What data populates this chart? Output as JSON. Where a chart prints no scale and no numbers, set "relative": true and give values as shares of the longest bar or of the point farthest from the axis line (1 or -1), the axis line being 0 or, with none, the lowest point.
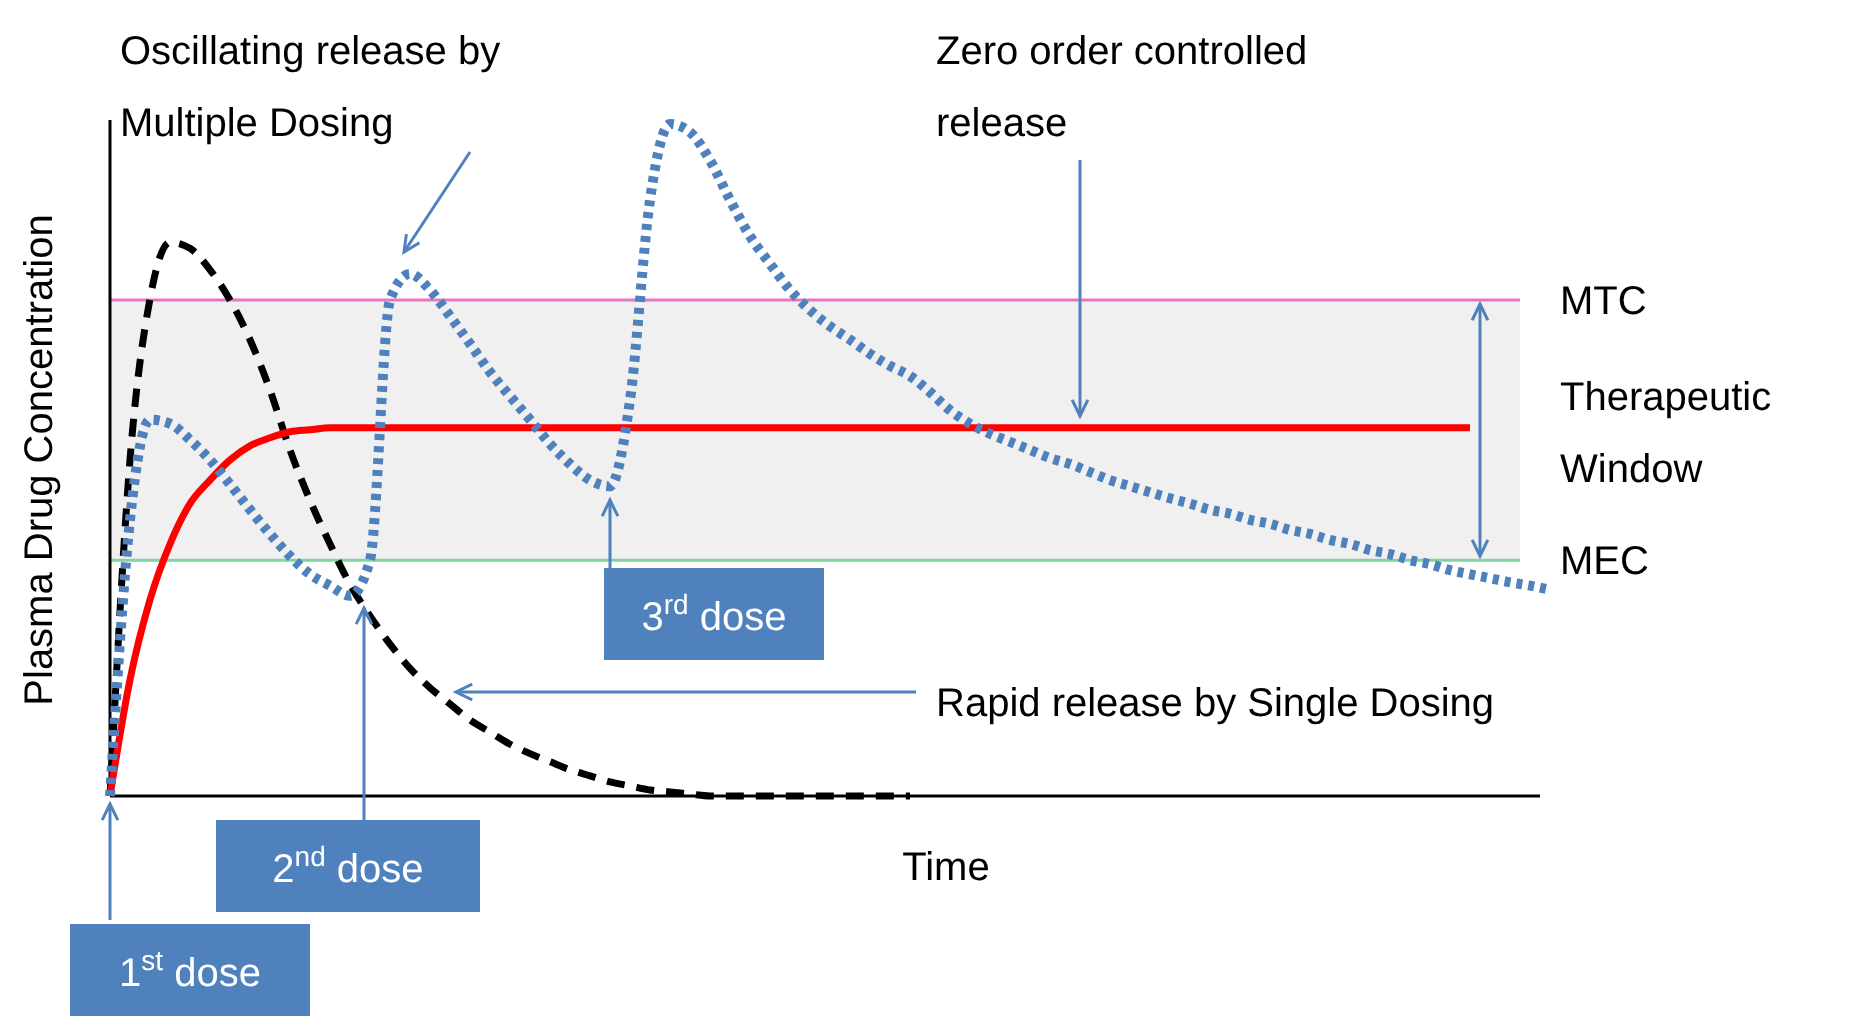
{
  "chart_data": {
    "type": "line",
    "relative": true,
    "ylabel": "Plasma Drug Concentration",
    "xlabel": "Time",
    "categories": [
      null,
      null,
      null,
      null,
      null,
      null,
      null,
      null,
      null,
      null,
      null,
      null,
      null,
      null,
      null,
      null,
      null,
      null,
      null,
      null,
      null,
      null,
      null,
      null,
      null,
      null,
      null,
      null,
      null,
      null,
      null,
      null,
      null,
      null,
      null,
      null,
      null,
      null,
      null,
      null,
      null,
      null,
      null,
      null,
      null,
      null,
      null,
      null,
      null,
      null,
      null,
      null,
      null,
      null,
      null,
      null,
      null,
      null,
      null,
      null,
      null,
      null,
      null,
      null,
      null,
      null,
      null,
      null,
      null,
      null,
      null,
      null,
      null
    ],
    "series": [
      {
        "color": "#000000",
        "line_style": "dashed",
        "values": [
          0,
          0.5,
          0.74,
          0.824,
          0.815,
          0.783,
          0.738,
          0.679,
          0.604,
          0.515,
          0.44,
          0.375,
          0.315,
          0.268,
          0.226,
          0.19,
          0.161,
          0.137,
          0.113,
          0.095,
          0.077,
          0.063,
          0.051,
          0.039,
          0.03,
          0.021,
          0.015,
          0.009,
          0.006,
          0.003,
          0,
          0,
          0,
          0,
          0,
          0,
          0,
          0,
          0,
          0,
          0,
          null,
          null,
          null,
          null,
          null,
          null,
          null,
          null,
          null,
          null,
          null,
          null,
          null,
          null,
          null,
          null,
          null,
          null,
          null,
          null,
          null,
          null,
          null,
          null,
          null,
          null,
          null,
          null,
          null,
          null,
          null,
          null
        ]
      },
      {
        "color": "#ff0000",
        "line_style": "solid",
        "values": [
          0,
          0.173,
          0.292,
          0.375,
          0.435,
          0.47,
          0.5,
          0.521,
          0.533,
          0.542,
          0.545,
          0.548,
          0.548,
          0.548,
          0.548,
          0.548,
          0.548,
          0.548,
          0.548,
          0.548,
          0.548,
          0.548,
          0.548,
          0.548,
          0.548,
          0.548,
          0.548,
          0.548,
          0.548,
          0.548,
          0.548,
          0.548,
          0.548,
          0.548,
          0.548,
          0.548,
          0.548,
          0.548,
          0.548,
          0.548,
          0.548,
          0.548,
          0.548,
          0.548,
          0.548,
          0.548,
          0.548,
          0.548,
          0.548,
          0.548,
          0.548,
          0.548,
          0.548,
          0.548,
          0.548,
          0.548,
          0.548,
          0.548,
          0.548,
          0.548,
          0.548,
          0.548,
          0.548,
          0.548,
          0.548,
          0.548,
          0.548,
          0.548,
          0.548,
          null,
          null,
          null,
          null
        ]
      },
      {
        "color": "#4f81bd",
        "line_style": "dotted",
        "values": [
          0,
          0.411,
          0.56,
          0.554,
          0.53,
          0.5,
          0.464,
          0.426,
          0.39,
          0.357,
          0.33,
          0.313,
          0.298,
          0.351,
          0.738,
          0.777,
          0.753,
          0.714,
          0.673,
          0.631,
          0.595,
          0.56,
          0.524,
          0.494,
          0.47,
          0.461,
          0.589,
          0.887,
          1,
          0.988,
          0.946,
          0.887,
          0.833,
          0.792,
          0.753,
          0.723,
          0.699,
          0.679,
          0.658,
          0.64,
          0.625,
          0.601,
          0.574,
          0.554,
          0.539,
          0.527,
          0.515,
          0.503,
          0.494,
          0.482,
          0.47,
          0.461,
          0.452,
          0.443,
          0.435,
          0.426,
          0.42,
          0.411,
          0.405,
          0.396,
          0.39,
          0.381,
          0.375,
          0.366,
          0.36,
          0.351,
          0.345,
          0.336,
          0.33,
          0.324,
          0.318,
          0.313,
          0.307
        ]
      }
    ],
    "ref_lines": [
      {
        "axis": "y",
        "value": 0.738,
        "label": "MTC",
        "color": "#e377c2"
      },
      {
        "axis": "y",
        "value": 0.351,
        "label": "MEC",
        "color": "#7fd4a0"
      }
    ],
    "bands": [
      {
        "axis": "y",
        "from": 0.351,
        "to": 0.738,
        "label": "Therapeutic Window",
        "color": "#f0f0f0"
      }
    ],
    "annotations": [
      "Oscillating release by Multiple Dosing",
      "Zero order controlled release",
      "Rapid release by Single Dosing",
      "1$^{st}$ dose",
      "2$^{nd}$ dose",
      "3$^{rd}$ dose"
    ]
  }
}
